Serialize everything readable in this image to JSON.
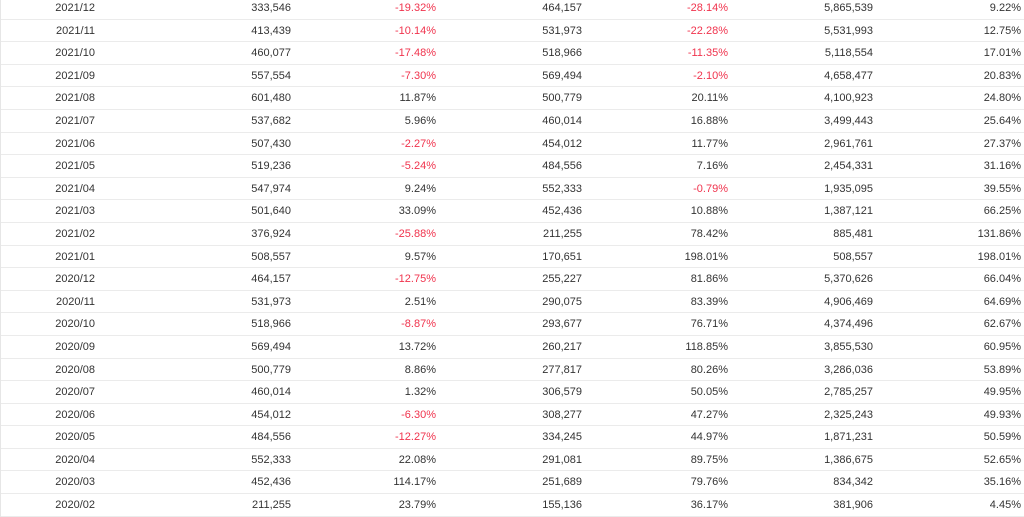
{
  "colors": {
    "negative": "#f0334d",
    "text": "#333333",
    "row_border": "#ebebeb"
  },
  "table": {
    "rows": [
      {
        "date": "2021/12",
        "v1": "333,546",
        "p1": "-19.32%",
        "v2": "464,157",
        "p2": "-28.14%",
        "v3": "5,865,539",
        "p3": "9.22%"
      },
      {
        "date": "2021/11",
        "v1": "413,439",
        "p1": "-10.14%",
        "v2": "531,973",
        "p2": "-22.28%",
        "v3": "5,531,993",
        "p3": "12.75%"
      },
      {
        "date": "2021/10",
        "v1": "460,077",
        "p1": "-17.48%",
        "v2": "518,966",
        "p2": "-11.35%",
        "v3": "5,118,554",
        "p3": "17.01%"
      },
      {
        "date": "2021/09",
        "v1": "557,554",
        "p1": "-7.30%",
        "v2": "569,494",
        "p2": "-2.10%",
        "v3": "4,658,477",
        "p3": "20.83%"
      },
      {
        "date": "2021/08",
        "v1": "601,480",
        "p1": "11.87%",
        "v2": "500,779",
        "p2": "20.11%",
        "v3": "4,100,923",
        "p3": "24.80%"
      },
      {
        "date": "2021/07",
        "v1": "537,682",
        "p1": "5.96%",
        "v2": "460,014",
        "p2": "16.88%",
        "v3": "3,499,443",
        "p3": "25.64%"
      },
      {
        "date": "2021/06",
        "v1": "507,430",
        "p1": "-2.27%",
        "v2": "454,012",
        "p2": "11.77%",
        "v3": "2,961,761",
        "p3": "27.37%"
      },
      {
        "date": "2021/05",
        "v1": "519,236",
        "p1": "-5.24%",
        "v2": "484,556",
        "p2": "7.16%",
        "v3": "2,454,331",
        "p3": "31.16%"
      },
      {
        "date": "2021/04",
        "v1": "547,974",
        "p1": "9.24%",
        "v2": "552,333",
        "p2": "-0.79%",
        "v3": "1,935,095",
        "p3": "39.55%"
      },
      {
        "date": "2021/03",
        "v1": "501,640",
        "p1": "33.09%",
        "v2": "452,436",
        "p2": "10.88%",
        "v3": "1,387,121",
        "p3": "66.25%"
      },
      {
        "date": "2021/02",
        "v1": "376,924",
        "p1": "-25.88%",
        "v2": "211,255",
        "p2": "78.42%",
        "v3": "885,481",
        "p3": "131.86%"
      },
      {
        "date": "2021/01",
        "v1": "508,557",
        "p1": "9.57%",
        "v2": "170,651",
        "p2": "198.01%",
        "v3": "508,557",
        "p3": "198.01%"
      },
      {
        "date": "2020/12",
        "v1": "464,157",
        "p1": "-12.75%",
        "v2": "255,227",
        "p2": "81.86%",
        "v3": "5,370,626",
        "p3": "66.04%"
      },
      {
        "date": "2020/11",
        "v1": "531,973",
        "p1": "2.51%",
        "v2": "290,075",
        "p2": "83.39%",
        "v3": "4,906,469",
        "p3": "64.69%"
      },
      {
        "date": "2020/10",
        "v1": "518,966",
        "p1": "-8.87%",
        "v2": "293,677",
        "p2": "76.71%",
        "v3": "4,374,496",
        "p3": "62.67%"
      },
      {
        "date": "2020/09",
        "v1": "569,494",
        "p1": "13.72%",
        "v2": "260,217",
        "p2": "118.85%",
        "v3": "3,855,530",
        "p3": "60.95%"
      },
      {
        "date": "2020/08",
        "v1": "500,779",
        "p1": "8.86%",
        "v2": "277,817",
        "p2": "80.26%",
        "v3": "3,286,036",
        "p3": "53.89%"
      },
      {
        "date": "2020/07",
        "v1": "460,014",
        "p1": "1.32%",
        "v2": "306,579",
        "p2": "50.05%",
        "v3": "2,785,257",
        "p3": "49.95%"
      },
      {
        "date": "2020/06",
        "v1": "454,012",
        "p1": "-6.30%",
        "v2": "308,277",
        "p2": "47.27%",
        "v3": "2,325,243",
        "p3": "49.93%"
      },
      {
        "date": "2020/05",
        "v1": "484,556",
        "p1": "-12.27%",
        "v2": "334,245",
        "p2": "44.97%",
        "v3": "1,871,231",
        "p3": "50.59%"
      },
      {
        "date": "2020/04",
        "v1": "552,333",
        "p1": "22.08%",
        "v2": "291,081",
        "p2": "89.75%",
        "v3": "1,386,675",
        "p3": "52.65%"
      },
      {
        "date": "2020/03",
        "v1": "452,436",
        "p1": "114.17%",
        "v2": "251,689",
        "p2": "79.76%",
        "v3": "834,342",
        "p3": "35.16%"
      },
      {
        "date": "2020/02",
        "v1": "211,255",
        "p1": "23.79%",
        "v2": "155,136",
        "p2": "36.17%",
        "v3": "381,906",
        "p3": "4.45%"
      }
    ]
  }
}
